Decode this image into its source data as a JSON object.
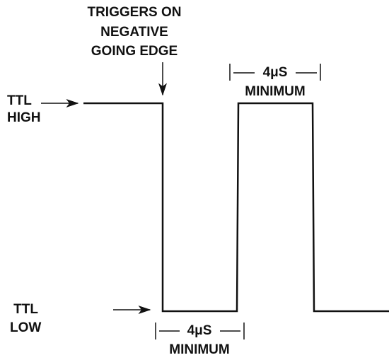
{
  "trigger_note": [
    "TRIGGERS ON",
    "NEGATIVE",
    "GOING EDGE"
  ],
  "high_label": [
    "TTL",
    "HIGH"
  ],
  "low_label": [
    "TTL",
    "LOW"
  ],
  "top_duration": {
    "value": "4μS",
    "note": "MINIMUM"
  },
  "bottom_duration": {
    "value": "4μS",
    "note": "MINIMUM"
  }
}
